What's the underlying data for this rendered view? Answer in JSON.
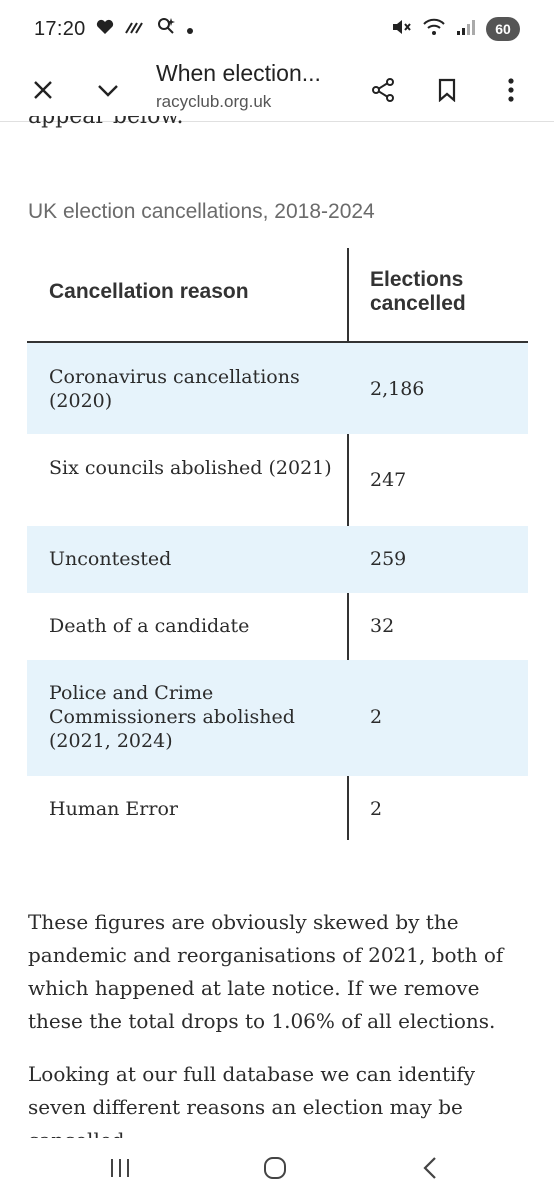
{
  "status_bar": {
    "time": "17:20",
    "battery": "60"
  },
  "toolbar": {
    "title": "When election...",
    "url": "racyclub.org.uk"
  },
  "article": {
    "clipped_text": "appear below.",
    "caption": "UK election cancellations, 2018-2024",
    "table": {
      "headers": [
        "Cancellation reason",
        "Elections cancelled"
      ],
      "rows": [
        {
          "reason": "Coronavirus cancellations (2020)",
          "count": "2,186"
        },
        {
          "reason": "Six councils abolished (2021)",
          "count": "247"
        },
        {
          "reason": "Uncontested",
          "count": "259"
        },
        {
          "reason": "Death of a candidate",
          "count": "32"
        },
        {
          "reason": "Police and Crime Commissioners abolished (2021, 2024)",
          "count": "2"
        },
        {
          "reason": "Human Error",
          "count": "2"
        }
      ]
    },
    "paragraph1": "These figures are obviously skewed by the pandemic and reorganisations of 2021, both of which happened at late notice. If we remove these the total drops to 1.06% of all elections.",
    "paragraph2": "Looking at our full database we can identify seven different reasons an election may be cancelled:"
  },
  "colors": {
    "row_shade": "#e6f3fb",
    "rule": "#333333",
    "caption": "#6b6b6b"
  },
  "icons": {
    "close": "close-icon",
    "collapse": "chevron-down-icon",
    "share": "share-icon",
    "bookmark": "bookmark-icon",
    "menu": "more-vert-icon",
    "nav_recents": "recents-icon",
    "nav_home": "home-icon",
    "nav_back": "back-icon"
  }
}
